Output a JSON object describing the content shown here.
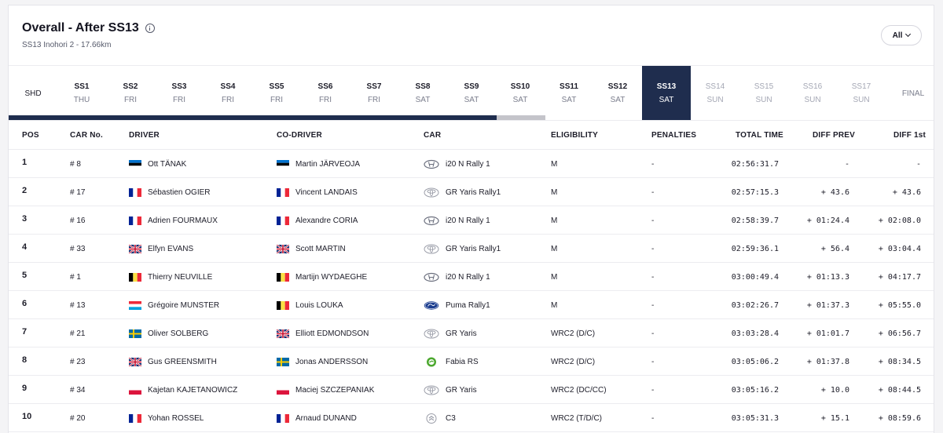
{
  "header": {
    "title": "Overall - After SS13",
    "subtitle": "SS13 Inohori 2 - 17.66km",
    "filter_label": "All"
  },
  "stages": [
    {
      "name": "SHD",
      "day": ""
    },
    {
      "name": "SS1",
      "day": "THU"
    },
    {
      "name": "SS2",
      "day": "FRI"
    },
    {
      "name": "SS3",
      "day": "FRI"
    },
    {
      "name": "SS4",
      "day": "FRI"
    },
    {
      "name": "SS5",
      "day": "FRI"
    },
    {
      "name": "SS6",
      "day": "FRI"
    },
    {
      "name": "SS7",
      "day": "FRI"
    },
    {
      "name": "SS8",
      "day": "SAT"
    },
    {
      "name": "SS9",
      "day": "SAT"
    },
    {
      "name": "SS10",
      "day": "SAT"
    },
    {
      "name": "SS11",
      "day": "SAT"
    },
    {
      "name": "SS12",
      "day": "SAT"
    },
    {
      "name": "SS13",
      "day": "SAT"
    },
    {
      "name": "SS14",
      "day": "SUN"
    },
    {
      "name": "SS15",
      "day": "SUN"
    },
    {
      "name": "SS16",
      "day": "SUN"
    },
    {
      "name": "SS17",
      "day": "SUN"
    },
    {
      "name": "FINAL",
      "day": ""
    }
  ],
  "current_stage": "SS13",
  "columns": {
    "pos": "POS",
    "car_no": "CAR No.",
    "driver": "DRIVER",
    "co_driver": "CO-DRIVER",
    "car": "CAR",
    "eligibility": "ELIGIBILITY",
    "penalties": "PENALTIES",
    "total_time": "TOTAL TIME",
    "diff_prev": "DIFF PREV",
    "diff_first": "DIFF 1st"
  },
  "rows": [
    {
      "pos": "1",
      "car_no": "# 8",
      "driver": "Ott TÄNAK",
      "driver_flag": "est-flag",
      "co_driver": "Martin JÄRVEOJA",
      "co_flag": "est-flag",
      "car": "i20 N Rally 1",
      "car_logo": "hyundai-logo",
      "eligibility": "M",
      "penalties": "-",
      "total_time": "02:56:31.7",
      "diff_prev": "-",
      "diff_first": "-"
    },
    {
      "pos": "2",
      "car_no": "# 17",
      "driver": "Sébastien OGIER",
      "driver_flag": "fra-flag",
      "co_driver": "Vincent LANDAIS",
      "co_flag": "fra-flag",
      "car": "GR Yaris Rally1",
      "car_logo": "toyota-logo",
      "eligibility": "M",
      "penalties": "-",
      "total_time": "02:57:15.3",
      "diff_prev": "+ 43.6",
      "diff_first": "+ 43.6"
    },
    {
      "pos": "3",
      "car_no": "# 16",
      "driver": "Adrien FOURMAUX",
      "driver_flag": "fra-flag",
      "co_driver": "Alexandre CORIA",
      "co_flag": "fra-flag",
      "car": "i20 N Rally 1",
      "car_logo": "hyundai-logo",
      "eligibility": "M",
      "penalties": "-",
      "total_time": "02:58:39.7",
      "diff_prev": "+ 01:24.4",
      "diff_first": "+ 02:08.0"
    },
    {
      "pos": "4",
      "car_no": "# 33",
      "driver": "Elfyn EVANS",
      "driver_flag": "gbr-flag",
      "co_driver": "Scott MARTIN",
      "co_flag": "gbr-flag",
      "car": "GR Yaris Rally1",
      "car_logo": "toyota-logo",
      "eligibility": "M",
      "penalties": "-",
      "total_time": "02:59:36.1",
      "diff_prev": "+ 56.4",
      "diff_first": "+ 03:04.4"
    },
    {
      "pos": "5",
      "car_no": "# 1",
      "driver": "Thierry NEUVILLE",
      "driver_flag": "bel-flag",
      "co_driver": "Martijn WYDAEGHE",
      "co_flag": "bel-flag",
      "car": "i20 N Rally 1",
      "car_logo": "hyundai-logo",
      "eligibility": "M",
      "penalties": "-",
      "total_time": "03:00:49.4",
      "diff_prev": "+ 01:13.3",
      "diff_first": "+ 04:17.7"
    },
    {
      "pos": "6",
      "car_no": "# 13",
      "driver": "Grégoire MUNSTER",
      "driver_flag": "lux-flag",
      "co_driver": "Louis LOUKA",
      "co_flag": "bel-flag",
      "car": "Puma Rally1",
      "car_logo": "ford-logo",
      "eligibility": "M",
      "penalties": "-",
      "total_time": "03:02:26.7",
      "diff_prev": "+ 01:37.3",
      "diff_first": "+ 05:55.0"
    },
    {
      "pos": "7",
      "car_no": "# 21",
      "driver": "Oliver SOLBERG",
      "driver_flag": "swe-flag",
      "co_driver": "Elliott EDMONDSON",
      "co_flag": "gbr-flag",
      "car": "GR Yaris",
      "car_logo": "toyota-logo",
      "eligibility": "WRC2 (D/C)",
      "penalties": "-",
      "total_time": "03:03:28.4",
      "diff_prev": "+ 01:01.7",
      "diff_first": "+ 06:56.7"
    },
    {
      "pos": "8",
      "car_no": "# 23",
      "driver": "Gus GREENSMITH",
      "driver_flag": "gbr-flag",
      "co_driver": "Jonas ANDERSSON",
      "co_flag": "swe-flag",
      "car": "Fabia RS",
      "car_logo": "skoda-logo",
      "eligibility": "WRC2 (D/C)",
      "penalties": "-",
      "total_time": "03:05:06.2",
      "diff_prev": "+ 01:37.8",
      "diff_first": "+ 08:34.5"
    },
    {
      "pos": "9",
      "car_no": "# 34",
      "driver": "Kajetan KAJETANOWICZ",
      "driver_flag": "pol-flag",
      "co_driver": "Maciej SZCZEPANIAK",
      "co_flag": "pol-flag",
      "car": "GR Yaris",
      "car_logo": "toyota-logo",
      "eligibility": "WRC2 (DC/CC)",
      "penalties": "-",
      "total_time": "03:05:16.2",
      "diff_prev": "+ 10.0",
      "diff_first": "+ 08:44.5"
    },
    {
      "pos": "10",
      "car_no": "# 20",
      "driver": "Yohan ROSSEL",
      "driver_flag": "fra-flag",
      "co_driver": "Arnaud DUNAND",
      "co_flag": "fra-flag",
      "car": "C3",
      "car_logo": "citroen-logo",
      "eligibility": "WRC2 (T/D/C)",
      "penalties": "-",
      "total_time": "03:05:31.3",
      "diff_prev": "+ 15.1",
      "diff_first": "+ 08:59.6"
    }
  ],
  "colors": {
    "progress_done": "#1f2d4e",
    "progress_current": "#c4c4ca",
    "current_stage_bg": "#1f2d4e"
  }
}
